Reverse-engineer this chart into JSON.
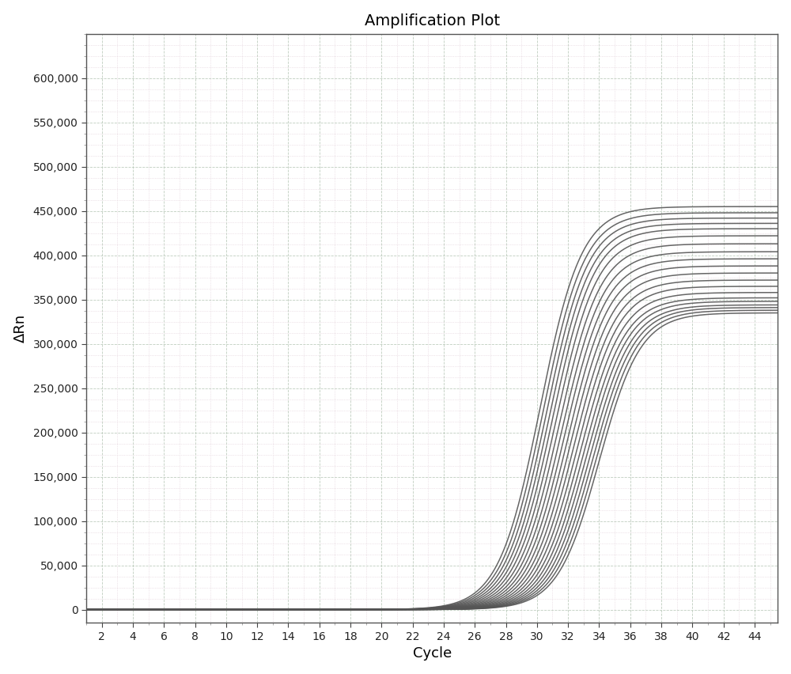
{
  "title": "Amplification Plot",
  "xlabel": "Cycle",
  "ylabel": "ΔRn",
  "xlim": [
    1,
    45.5
  ],
  "ylim": [
    -15000,
    650000
  ],
  "xticks": [
    2,
    4,
    6,
    8,
    10,
    12,
    14,
    16,
    18,
    20,
    22,
    24,
    26,
    28,
    30,
    32,
    34,
    36,
    38,
    40,
    42,
    44
  ],
  "yticks": [
    0,
    50000,
    100000,
    150000,
    200000,
    250000,
    300000,
    350000,
    400000,
    450000,
    500000,
    550000,
    600000
  ],
  "background_color": "#ffffff",
  "plot_bg_color": "#ffffff",
  "line_color": "#555555",
  "line_width": 1.1,
  "num_curves": 20,
  "sigmoid_midpoints": [
    30.2,
    30.4,
    30.6,
    30.8,
    31.0,
    31.2,
    31.4,
    31.6,
    31.8,
    32.0,
    32.2,
    32.4,
    32.6,
    32.8,
    33.0,
    33.2,
    33.4,
    33.6,
    33.8,
    34.0
  ],
  "sigmoid_max_values": [
    455000,
    448000,
    442000,
    436000,
    430000,
    422000,
    413000,
    404000,
    396000,
    388000,
    380000,
    372000,
    365000,
    358000,
    352000,
    348000,
    344000,
    341000,
    338000,
    335000
  ],
  "sigmoid_steepness": 0.75,
  "major_grid_color": "#b8c8b8",
  "major_grid_style": "--",
  "major_grid_lw": 0.6,
  "minor_grid_color": "#d8c0cc",
  "minor_grid_style": ":",
  "minor_grid_lw": 0.5,
  "minor_x_step": 1,
  "minor_y_step": 12500
}
